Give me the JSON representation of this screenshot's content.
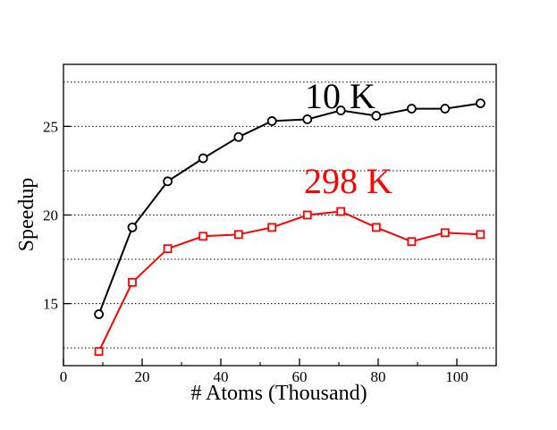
{
  "chart_data": {
    "type": "line",
    "xlabel": "# Atoms (Thousand)",
    "ylabel": "Speedup",
    "xlim": [
      0,
      110
    ],
    "ylim": [
      11.5,
      28.5
    ],
    "xticks": [
      0,
      20,
      40,
      60,
      80,
      100
    ],
    "yticks": [
      15,
      20,
      25
    ],
    "dotted_gridlines_y": [
      12.5,
      15,
      17.5,
      20,
      22.5,
      25,
      27.5
    ],
    "x": [
      9,
      17.5,
      26.5,
      35.5,
      44.5,
      53,
      62,
      70.5,
      79.5,
      88.5,
      97,
      106
    ],
    "series": [
      {
        "name": "10 K",
        "marker": "circle",
        "color": "#000000",
        "values": [
          14.4,
          19.3,
          21.9,
          23.2,
          24.4,
          25.3,
          25.4,
          25.9,
          25.6,
          26.0,
          26.0,
          26.3
        ]
      },
      {
        "name": "298 K",
        "marker": "square",
        "color": "#ff0000",
        "values": [
          12.3,
          16.2,
          18.1,
          18.8,
          18.9,
          19.3,
          20.0,
          20.2,
          19.3,
          18.5,
          19.0,
          18.9
        ]
      }
    ]
  }
}
